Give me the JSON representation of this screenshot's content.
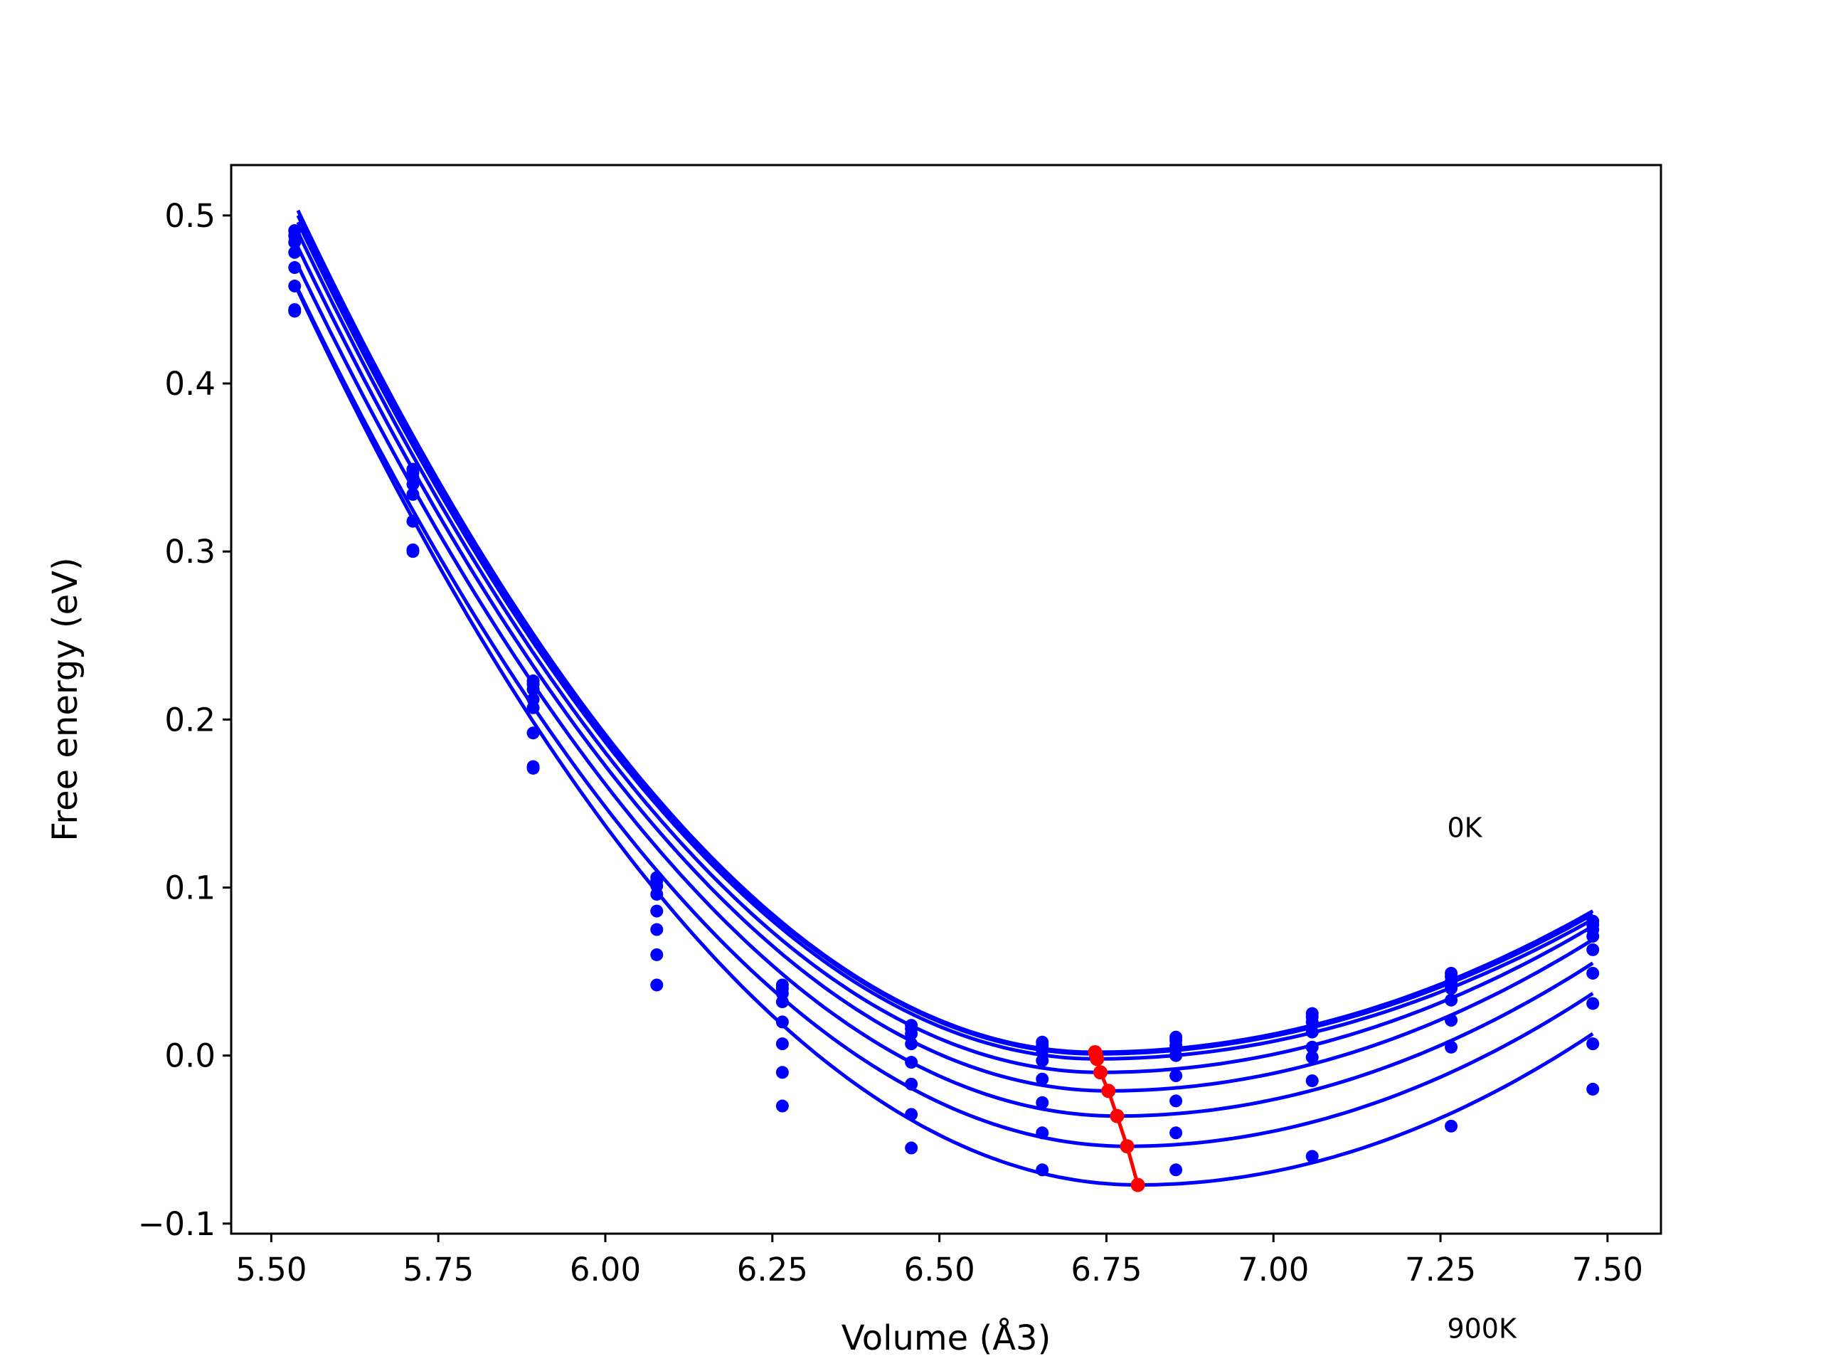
{
  "chart_data": {
    "type": "scatter",
    "xlabel": "Volume (Å3)",
    "ylabel": "Free energy (eV)",
    "xlim": [
      5.44,
      7.58
    ],
    "ylim": [
      -0.106,
      0.53
    ],
    "xticks": [
      "5.50",
      "5.75",
      "6.00",
      "6.25",
      "6.50",
      "6.75",
      "7.00",
      "7.25",
      "7.50"
    ],
    "xtick_values": [
      5.5,
      5.75,
      6.0,
      6.25,
      6.5,
      6.75,
      7.0,
      7.25,
      7.5
    ],
    "yticks": [
      "−0.1",
      "0.0",
      "0.1",
      "0.2",
      "0.3",
      "0.4",
      "0.5"
    ],
    "ytick_values": [
      -0.1,
      0.0,
      0.1,
      0.2,
      0.3,
      0.4,
      0.5
    ],
    "grid": false,
    "annotations": [
      {
        "text": "0K",
        "x": 7.26,
        "y": 0.13
      },
      {
        "text": "900K",
        "x": 7.26,
        "y": -0.168
      }
    ],
    "colors": {
      "curves": "#0000ff",
      "minimum_path": "#ff0000"
    },
    "volumes": [
      5.535,
      5.712,
      5.892,
      6.077,
      6.265,
      6.458,
      6.654,
      6.854,
      7.058,
      7.266,
      7.478
    ],
    "series": [
      {
        "v0": 6.733,
        "fmin": 0.002,
        "energies": [
          0.491,
          0.349,
          0.223,
          0.106,
          0.042,
          0.018,
          0.008,
          0.011,
          0.025,
          0.049,
          0.08
        ]
      },
      {
        "v0": 6.734,
        "fmin": 0.001,
        "energies": [
          0.488,
          0.347,
          0.221,
          0.104,
          0.04,
          0.016,
          0.006,
          0.009,
          0.023,
          0.047,
          0.078
        ]
      },
      {
        "v0": 6.736,
        "fmin": -0.002,
        "energies": [
          0.484,
          0.344,
          0.218,
          0.101,
          0.037,
          0.013,
          0.003,
          0.006,
          0.02,
          0.044,
          0.075
        ]
      },
      {
        "v0": 6.741,
        "fmin": -0.01,
        "energies": [
          0.478,
          0.34,
          0.212,
          0.096,
          0.032,
          0.007,
          -0.003,
          0.0,
          0.014,
          0.04,
          0.071
        ]
      },
      {
        "v0": 6.753,
        "fmin": -0.021,
        "energies": [
          0.469,
          0.334,
          0.207,
          0.086,
          0.02,
          -0.004,
          -0.014,
          -0.012,
          0.005,
          0.033,
          0.063
        ]
      },
      {
        "v0": 6.766,
        "fmin": -0.036,
        "energies": [
          0.458,
          0.318,
          0.192,
          0.075,
          0.007,
          -0.017,
          -0.028,
          -0.027,
          -0.001,
          0.021,
          0.049
        ]
      },
      {
        "v0": 6.781,
        "fmin": -0.054,
        "energies": [
          0.444,
          0.3,
          0.172,
          0.06,
          -0.01,
          -0.035,
          -0.046,
          -0.046,
          -0.015,
          0.005,
          0.031
        ]
      },
      {
        "v0": 6.797,
        "fmin": -0.077,
        "energies": [
          0.443,
          0.301,
          0.171,
          0.042,
          -0.03,
          -0.055,
          -0.068,
          -0.068,
          -0.06,
          -0.042,
          0.007
        ]
      }
    ],
    "extra_points": [
      {
        "x": 7.478,
        "y": -0.02
      }
    ],
    "minimum_path": {
      "x": [
        6.733,
        6.734,
        6.736,
        6.741,
        6.753,
        6.766,
        6.781,
        6.797
      ],
      "y": [
        0.002,
        0.001,
        -0.002,
        -0.01,
        -0.021,
        -0.036,
        -0.054,
        -0.077
      ]
    }
  }
}
